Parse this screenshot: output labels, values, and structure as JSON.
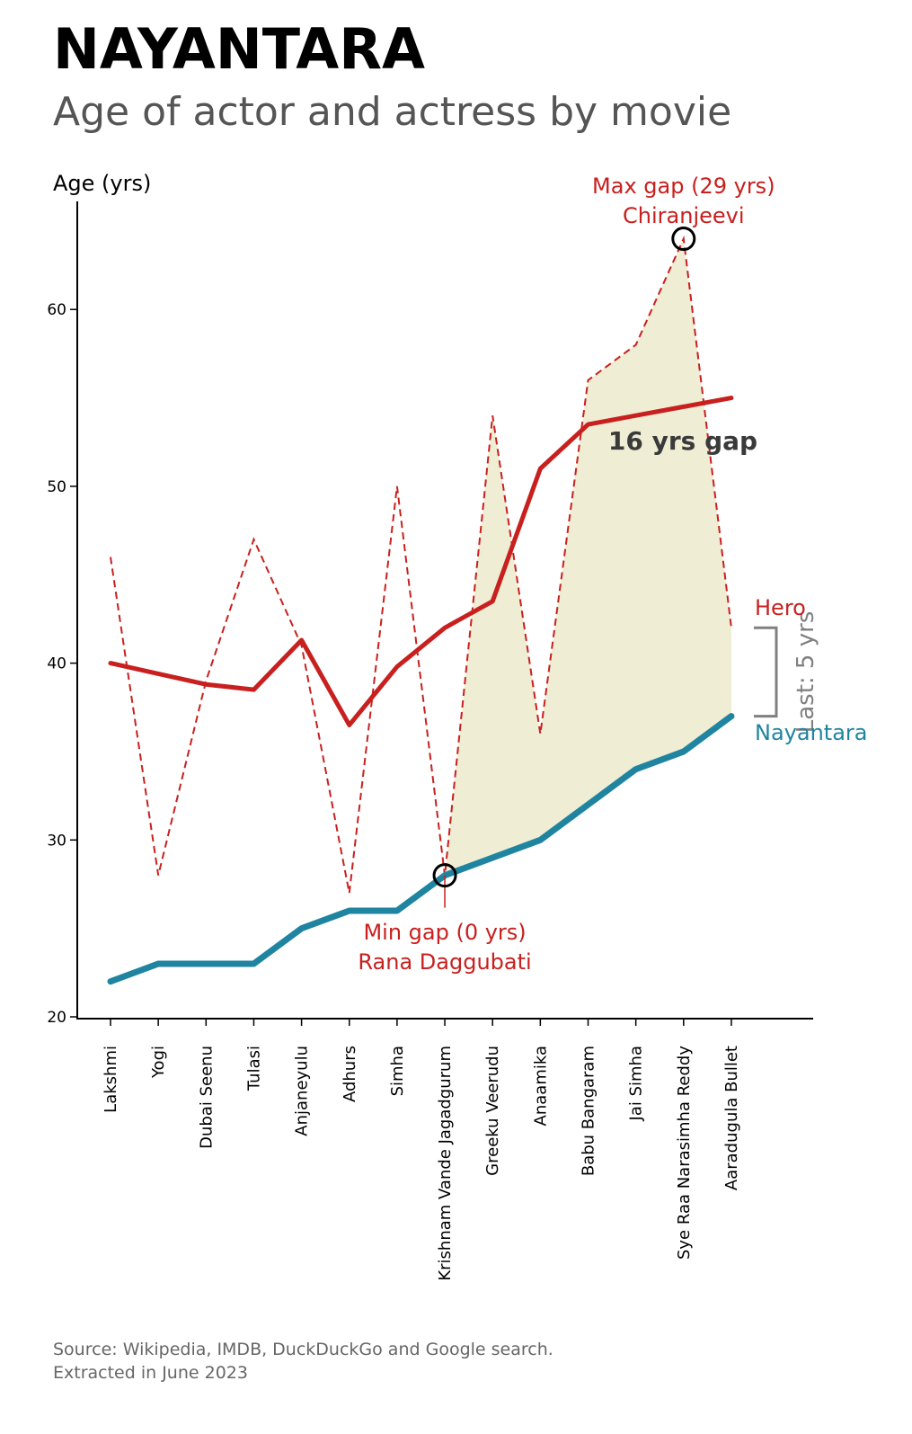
{
  "title": "NAYANTARA",
  "subtitle": "Age of actor and actress by movie",
  "source": {
    "line1": "Source: Wikipedia, IMDB, DuckDuckGo and Google search.",
    "line2": "Extracted in June 2023"
  },
  "colors": {
    "hero": "#c8201e",
    "nayantara": "#1f84a0",
    "gap_fill": "#efedd4",
    "last_bracket": "#808080",
    "gap_label": "#3a3a3a"
  },
  "chart_data": {
    "type": "line",
    "ylabel": "Age (yrs)",
    "ylim": [
      20,
      65
    ],
    "yticks": [
      20,
      30,
      40,
      50,
      60
    ],
    "categories": [
      "Lakshmi",
      "Yogi",
      "Dubai Seenu",
      "Tulasi",
      "Anjaneyulu",
      "Adhurs",
      "Simha",
      "Krishnam Vande Jagadgurum",
      "Greeku Veerudu",
      "Anaamika",
      "Babu Bangaram",
      "Jai Simha",
      "Sye Raa Narasimha Reddy",
      "Aaradugula Bullet"
    ],
    "series": [
      {
        "name": "Hero",
        "style": "dashed",
        "values": [
          46,
          28,
          39,
          47,
          41,
          27,
          50,
          28,
          54,
          36,
          56,
          58,
          64,
          42
        ]
      },
      {
        "name": "Hero",
        "style": "smoothed",
        "values": [
          40,
          39.4,
          38.8,
          38.5,
          41.3,
          36.5,
          39.8,
          42,
          43.5,
          51,
          53.5,
          54,
          54.5,
          55
        ]
      },
      {
        "name": "Nayantara",
        "style": "solid",
        "values": [
          22,
          23,
          23,
          23,
          25,
          26,
          26,
          28,
          29,
          30,
          32,
          34,
          35,
          37
        ]
      }
    ],
    "shaded_gap_from_index": 7,
    "annotations": {
      "max_gap_line1": "Max gap (29 yrs)",
      "max_gap_line2": "Chiranjeevi",
      "min_gap_line1": "Min gap (0 yrs)",
      "min_gap_line2": "Rana Daggubati",
      "avg_gap": "16 yrs gap",
      "last_gap": "Last: 5 yrs",
      "hero_label": "Hero",
      "nayantara_label": "Nayantara"
    }
  }
}
